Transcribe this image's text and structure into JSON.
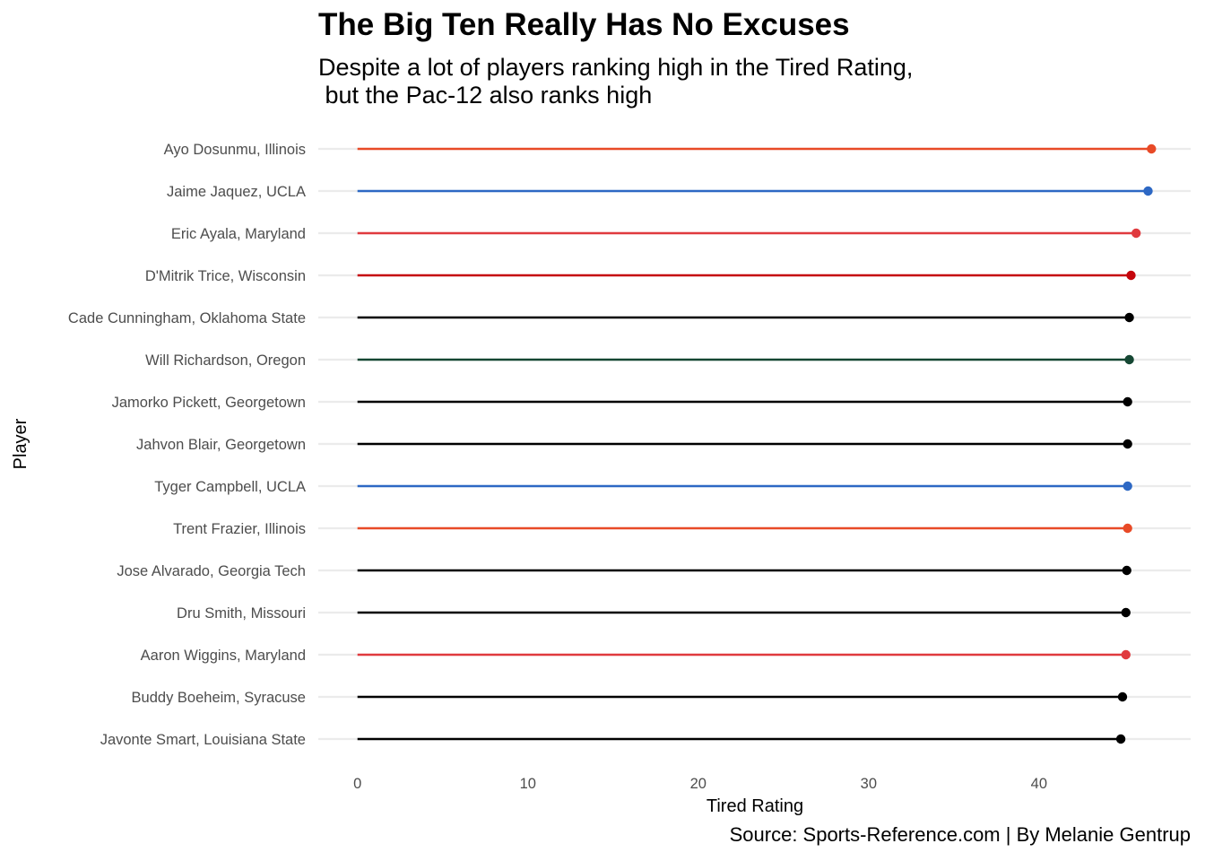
{
  "chart_data": {
    "type": "lollipop",
    "title": "The Big Ten Really Has No Excuses",
    "subtitle": "Despite a lot of players ranking high in the Tired Rating,\n but the Pac-12 also ranks high",
    "caption": "Source: Sports-Reference.com | By Melanie Gentrup",
    "xlabel": "Tired Rating",
    "ylabel": "Player",
    "xlim": [
      -2.3,
      48.9
    ],
    "xticks": [
      0,
      10,
      20,
      30,
      40
    ],
    "grid": "horizontal",
    "legend": "none",
    "points": [
      {
        "label": "Ayo Dosunmu, Illinois",
        "value": 46.6,
        "color": "#E84A27"
      },
      {
        "label": "Jaime Jaquez, UCLA",
        "value": 46.4,
        "color": "#2D68C4"
      },
      {
        "label": "Eric Ayala, Maryland",
        "value": 45.7,
        "color": "#E03A3E"
      },
      {
        "label": "D'Mitrik Trice, Wisconsin",
        "value": 45.4,
        "color": "#C5050C"
      },
      {
        "label": "Cade Cunningham, Oklahoma State",
        "value": 45.3,
        "color": "#000000"
      },
      {
        "label": "Will Richardson, Oregon",
        "value": 45.3,
        "color": "#154733"
      },
      {
        "label": "Jamorko Pickett, Georgetown",
        "value": 45.2,
        "color": "#000000"
      },
      {
        "label": "Jahvon Blair, Georgetown",
        "value": 45.2,
        "color": "#000000"
      },
      {
        "label": "Tyger Campbell, UCLA",
        "value": 45.2,
        "color": "#2D68C4"
      },
      {
        "label": "Trent Frazier, Illinois",
        "value": 45.2,
        "color": "#E84A27"
      },
      {
        "label": "Jose Alvarado, Georgia Tech",
        "value": 45.15,
        "color": "#000000"
      },
      {
        "label": "Dru Smith, Missouri",
        "value": 45.1,
        "color": "#000000"
      },
      {
        "label": "Aaron Wiggins, Maryland",
        "value": 45.1,
        "color": "#E03A3E"
      },
      {
        "label": "Buddy Boeheim, Syracuse",
        "value": 44.9,
        "color": "#000000"
      },
      {
        "label": "Javonte Smart, Louisiana State",
        "value": 44.8,
        "color": "#000000"
      }
    ]
  }
}
